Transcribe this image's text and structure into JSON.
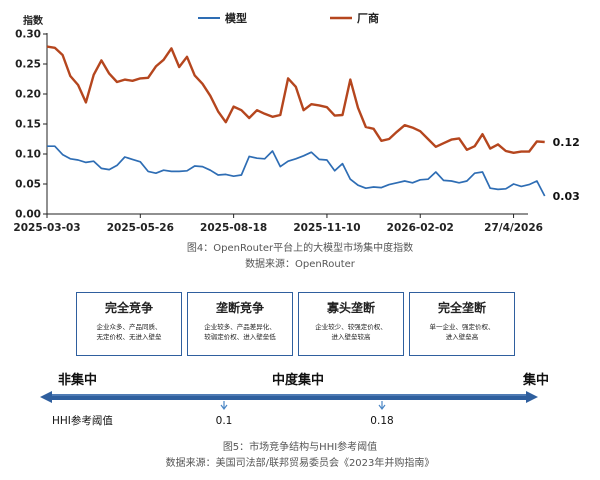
{
  "chart_data": {
    "type": "line",
    "ylabel": "指数",
    "ylim": [
      0,
      0.3
    ],
    "yticks": [
      "0.00",
      "0.05",
      "0.10",
      "0.15",
      "0.20",
      "0.25",
      "0.30"
    ],
    "xlim": [
      "2025-03-03",
      "2026-05-10"
    ],
    "xticks": [
      {
        "x": "2025-03-03",
        "label": "2025-03-03"
      },
      {
        "x": "2025-05-26",
        "label": "2025-05-26"
      },
      {
        "x": "2025-08-18",
        "label": "2025-08-18"
      },
      {
        "x": "2025-11-10",
        "label": "2025-11-10"
      },
      {
        "x": "2026-02-02",
        "label": "2026-02-02"
      },
      {
        "x": "2026-04-27",
        "label": "27/4/2026"
      }
    ],
    "legend_position": "top-center",
    "grid": false,
    "series": [
      {
        "name": "模型",
        "color": "#2e6db4",
        "end_label": "0.03",
        "points": [
          [
            "2025-03-03",
            0.113
          ],
          [
            "2025-03-10",
            0.113
          ],
          [
            "2025-03-17",
            0.099
          ],
          [
            "2025-03-24",
            0.092
          ],
          [
            "2025-03-31",
            0.09
          ],
          [
            "2025-04-07",
            0.086
          ],
          [
            "2025-04-14",
            0.088
          ],
          [
            "2025-04-21",
            0.076
          ],
          [
            "2025-04-28",
            0.074
          ],
          [
            "2025-05-05",
            0.081
          ],
          [
            "2025-05-12",
            0.095
          ],
          [
            "2025-05-19",
            0.091
          ],
          [
            "2025-05-26",
            0.087
          ],
          [
            "2025-06-02",
            0.071
          ],
          [
            "2025-06-09",
            0.068
          ],
          [
            "2025-06-16",
            0.073
          ],
          [
            "2025-06-23",
            0.071
          ],
          [
            "2025-06-30",
            0.071
          ],
          [
            "2025-07-07",
            0.072
          ],
          [
            "2025-07-14",
            0.08
          ],
          [
            "2025-07-21",
            0.079
          ],
          [
            "2025-07-28",
            0.073
          ],
          [
            "2025-08-04",
            0.065
          ],
          [
            "2025-08-11",
            0.066
          ],
          [
            "2025-08-18",
            0.063
          ],
          [
            "2025-08-25",
            0.065
          ],
          [
            "2025-09-01",
            0.096
          ],
          [
            "2025-09-08",
            0.093
          ],
          [
            "2025-09-15",
            0.092
          ],
          [
            "2025-09-22",
            0.105
          ],
          [
            "2025-09-29",
            0.079
          ],
          [
            "2025-10-06",
            0.088
          ],
          [
            "2025-10-13",
            0.092
          ],
          [
            "2025-10-20",
            0.097
          ],
          [
            "2025-10-27",
            0.103
          ],
          [
            "2025-11-03",
            0.091
          ],
          [
            "2025-11-10",
            0.09
          ],
          [
            "2025-11-17",
            0.072
          ],
          [
            "2025-11-24",
            0.084
          ],
          [
            "2025-12-01",
            0.058
          ],
          [
            "2025-12-08",
            0.048
          ],
          [
            "2025-12-15",
            0.043
          ],
          [
            "2025-12-22",
            0.045
          ],
          [
            "2025-12-29",
            0.044
          ],
          [
            "2026-01-05",
            0.049
          ],
          [
            "2026-01-12",
            0.052
          ],
          [
            "2026-01-19",
            0.055
          ],
          [
            "2026-01-26",
            0.052
          ],
          [
            "2026-02-02",
            0.057
          ],
          [
            "2026-02-09",
            0.058
          ],
          [
            "2026-02-16",
            0.07
          ],
          [
            "2026-02-23",
            0.056
          ],
          [
            "2026-03-02",
            0.055
          ],
          [
            "2026-03-09",
            0.052
          ],
          [
            "2026-03-16",
            0.055
          ],
          [
            "2026-03-23",
            0.068
          ],
          [
            "2026-03-30",
            0.07
          ],
          [
            "2026-04-06",
            0.043
          ],
          [
            "2026-04-13",
            0.041
          ],
          [
            "2026-04-20",
            0.042
          ],
          [
            "2026-04-27",
            0.05
          ],
          [
            "2026-05-04",
            0.046
          ],
          [
            "2026-05-11",
            0.049
          ],
          [
            "2026-05-18",
            0.055
          ],
          [
            "2026-05-25",
            0.03
          ]
        ]
      },
      {
        "name": "厂商",
        "color": "#b5461e",
        "end_label": "0.12",
        "points": [
          [
            "2025-03-03",
            0.279
          ],
          [
            "2025-03-10",
            0.277
          ],
          [
            "2025-03-17",
            0.265
          ],
          [
            "2025-03-24",
            0.23
          ],
          [
            "2025-03-31",
            0.215
          ],
          [
            "2025-04-07",
            0.186
          ],
          [
            "2025-04-14",
            0.232
          ],
          [
            "2025-04-21",
            0.256
          ],
          [
            "2025-04-28",
            0.234
          ],
          [
            "2025-05-05",
            0.22
          ],
          [
            "2025-05-12",
            0.224
          ],
          [
            "2025-05-19",
            0.222
          ],
          [
            "2025-05-26",
            0.226
          ],
          [
            "2025-06-02",
            0.227
          ],
          [
            "2025-06-09",
            0.246
          ],
          [
            "2025-06-16",
            0.257
          ],
          [
            "2025-06-23",
            0.276
          ],
          [
            "2025-06-30",
            0.245
          ],
          [
            "2025-07-07",
            0.262
          ],
          [
            "2025-07-14",
            0.231
          ],
          [
            "2025-07-21",
            0.217
          ],
          [
            "2025-07-28",
            0.197
          ],
          [
            "2025-08-04",
            0.171
          ],
          [
            "2025-08-11",
            0.153
          ],
          [
            "2025-08-18",
            0.179
          ],
          [
            "2025-08-25",
            0.173
          ],
          [
            "2025-09-01",
            0.16
          ],
          [
            "2025-09-08",
            0.173
          ],
          [
            "2025-09-15",
            0.167
          ],
          [
            "2025-09-22",
            0.162
          ],
          [
            "2025-09-29",
            0.165
          ],
          [
            "2025-10-06",
            0.226
          ],
          [
            "2025-10-13",
            0.212
          ],
          [
            "2025-10-20",
            0.173
          ],
          [
            "2025-10-27",
            0.183
          ],
          [
            "2025-11-03",
            0.181
          ],
          [
            "2025-11-10",
            0.178
          ],
          [
            "2025-11-17",
            0.164
          ],
          [
            "2025-11-24",
            0.165
          ],
          [
            "2025-12-01",
            0.224
          ],
          [
            "2025-12-08",
            0.177
          ],
          [
            "2025-12-15",
            0.145
          ],
          [
            "2025-12-22",
            0.142
          ],
          [
            "2025-12-29",
            0.122
          ],
          [
            "2026-01-05",
            0.125
          ],
          [
            "2026-01-12",
            0.137
          ],
          [
            "2026-01-19",
            0.148
          ],
          [
            "2026-01-26",
            0.144
          ],
          [
            "2026-02-02",
            0.138
          ],
          [
            "2026-02-09",
            0.125
          ],
          [
            "2026-02-16",
            0.112
          ],
          [
            "2026-02-23",
            0.118
          ],
          [
            "2026-03-02",
            0.124
          ],
          [
            "2026-03-09",
            0.126
          ],
          [
            "2026-03-16",
            0.107
          ],
          [
            "2026-03-23",
            0.113
          ],
          [
            "2026-03-30",
            0.133
          ],
          [
            "2026-04-06",
            0.109
          ],
          [
            "2026-04-13",
            0.116
          ],
          [
            "2026-04-20",
            0.105
          ],
          [
            "2026-04-27",
            0.102
          ],
          [
            "2026-05-04",
            0.104
          ],
          [
            "2026-05-11",
            0.104
          ],
          [
            "2026-05-18",
            0.121
          ],
          [
            "2026-05-25",
            0.12
          ]
        ]
      }
    ]
  },
  "figure4": {
    "caption": "图4：OpenRouter平台上的大模型市场集中度指数",
    "source": "数据来源：OpenRouter"
  },
  "market_structure": {
    "boxes": [
      {
        "title": "完全竞争",
        "desc_line1": "企业众多、产品同质、",
        "desc_line2": "无定价权、无进入壁垒"
      },
      {
        "title": "垄断竞争",
        "desc_line1": "企业较多、产品差异化、",
        "desc_line2": "较弱定价权、进入壁垒低"
      },
      {
        "title": "寡头垄断",
        "desc_line1": "企业较少、较强定价权、",
        "desc_line2": "进入壁垒较高"
      },
      {
        "title": "完全垄断",
        "desc_line1": "单一企业、强定价权、",
        "desc_line2": "进入壁垒高"
      }
    ],
    "axis_labels": {
      "left": "非集中",
      "center": "中度集中",
      "right": "集中"
    },
    "hhi_label": "HHI参考阈值",
    "thresholds": [
      {
        "value": 0.1,
        "label": "0.1"
      },
      {
        "value": 0.18,
        "label": "0.18"
      }
    ],
    "arrow_color": "#2f5f9e"
  },
  "figure5": {
    "caption": "图5：市场竞争结构与HHI参考阈值",
    "source": "数据来源：美国司法部/联邦贸易委员会《2023年并购指南》"
  }
}
